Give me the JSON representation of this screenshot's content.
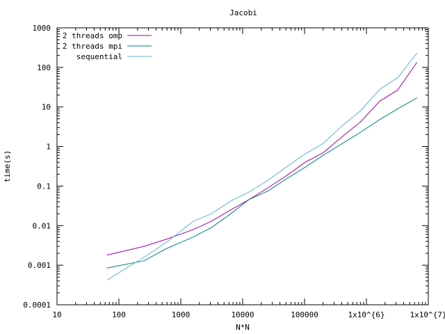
{
  "chart_data": {
    "type": "line",
    "title": "Jacobi",
    "xlabel": "N*N",
    "ylabel": "time(s)",
    "x_scale": "log",
    "y_scale": "log",
    "xlim": [
      10,
      10000000
    ],
    "ylim": [
      0.0001,
      1000
    ],
    "x_ticks": [
      {
        "value": 10,
        "label": "10"
      },
      {
        "value": 100,
        "label": "100"
      },
      {
        "value": 1000,
        "label": "1000"
      },
      {
        "value": 10000,
        "label": "10000"
      },
      {
        "value": 100000,
        "label": "100000"
      },
      {
        "value": 1000000,
        "label": "1x10^{6}"
      },
      {
        "value": 10000000,
        "label": "1x10^{7}"
      }
    ],
    "y_ticks": [
      {
        "value": 0.0001,
        "label": "0.0001"
      },
      {
        "value": 0.001,
        "label": "0.001"
      },
      {
        "value": 0.01,
        "label": "0.01"
      },
      {
        "value": 0.1,
        "label": "0.1"
      },
      {
        "value": 1,
        "label": "1"
      },
      {
        "value": 10,
        "label": "10"
      },
      {
        "value": 100,
        "label": "100"
      },
      {
        "value": 1000,
        "label": "1000"
      }
    ],
    "grid": false,
    "legend_position": "top-left",
    "x": [
      64,
      256,
      576,
      1600,
      3136,
      6400,
      12544,
      25600,
      50176,
      102400,
      200704,
      409600,
      802816,
      1638400,
      3211264,
      6553600
    ],
    "series": [
      {
        "name": "2 threads omp",
        "color": "#a000a0",
        "values": [
          0.0018,
          0.003,
          0.0045,
          0.008,
          0.013,
          0.025,
          0.045,
          0.09,
          0.18,
          0.4,
          0.7,
          1.8,
          4.2,
          14,
          27,
          135
        ]
      },
      {
        "name": "2 threads mpi",
        "color": "#008080",
        "values": [
          0.00085,
          0.0013,
          0.0026,
          0.0052,
          0.009,
          0.02,
          0.045,
          0.075,
          0.15,
          0.3,
          0.6,
          1.2,
          2.3,
          4.8,
          9,
          17
        ]
      },
      {
        "name": "sequential",
        "color": "#5fb0dc",
        "values": [
          0.00042,
          0.0016,
          0.0037,
          0.013,
          0.02,
          0.042,
          0.07,
          0.14,
          0.3,
          0.65,
          1.2,
          3.4,
          8,
          28,
          55,
          230
        ]
      }
    ]
  }
}
